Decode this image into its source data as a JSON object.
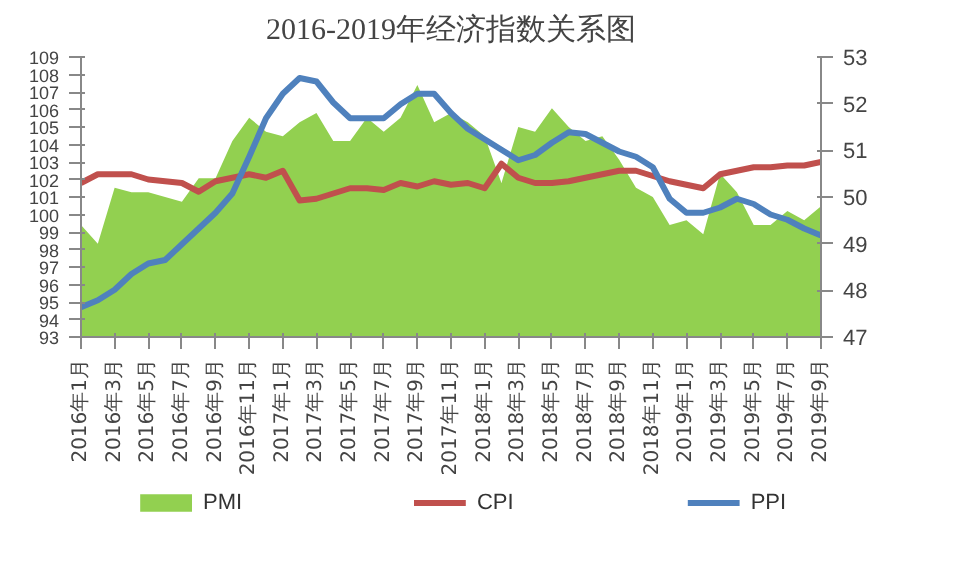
{
  "chart_data": {
    "type": "line",
    "title": "2016-2019年经济指数关系图",
    "categories": [
      "2016年1月",
      null,
      "2016年3月",
      null,
      "2016年5月",
      null,
      "2016年7月",
      null,
      "2016年9月",
      null,
      "2016年11月",
      null,
      "2017年1月",
      null,
      "2017年3月",
      null,
      "2017年5月",
      null,
      "2017年7月",
      null,
      "2017年9月",
      null,
      "2017年11月",
      null,
      "2018年1月",
      null,
      "2018年3月",
      null,
      "2018年5月",
      null,
      "2018年7月",
      null,
      "2018年9月",
      null,
      "2018年11月",
      null,
      "2019年1月",
      null,
      "2019年3月",
      null,
      "2019年5月",
      null,
      "2019年7月",
      null,
      "2019年9月"
    ],
    "ylim": [
      93,
      109
    ],
    "yticks": [
      93,
      94,
      95,
      96,
      97,
      98,
      99,
      100,
      101,
      102,
      103,
      104,
      105,
      106,
      107,
      108,
      109
    ],
    "y2lim": [
      47,
      53
    ],
    "y2ticks": [
      47,
      48,
      49,
      50,
      51,
      52,
      53
    ],
    "grid": false,
    "legend": "bottom",
    "series": [
      {
        "name": "PMI",
        "type": "area",
        "axis": "y2",
        "color": "#92d050",
        "values": [
          49.4,
          49.0,
          50.2,
          50.1,
          50.1,
          50.0,
          49.9,
          50.4,
          50.4,
          51.2,
          51.7,
          51.4,
          51.3,
          51.6,
          51.8,
          51.2,
          51.2,
          51.7,
          51.4,
          51.7,
          52.4,
          51.6,
          51.8,
          51.6,
          51.3,
          50.3,
          51.5,
          51.4,
          51.9,
          51.5,
          51.2,
          51.3,
          50.8,
          50.2,
          50.0,
          49.4,
          49.5,
          49.2,
          50.5,
          50.1,
          49.4,
          49.4,
          49.7,
          49.5,
          49.8
        ]
      },
      {
        "name": "CPI",
        "color": "#c0504d",
        "values": [
          101.8,
          102.3,
          102.3,
          102.3,
          102.0,
          101.9,
          101.8,
          101.3,
          101.9,
          102.1,
          102.3,
          102.1,
          102.5,
          100.8,
          100.9,
          101.2,
          101.5,
          101.5,
          101.4,
          101.8,
          101.6,
          101.9,
          101.7,
          101.8,
          101.5,
          102.9,
          102.1,
          101.8,
          101.8,
          101.9,
          102.1,
          102.3,
          102.5,
          102.5,
          102.2,
          101.9,
          101.7,
          101.5,
          102.3,
          102.5,
          102.7,
          102.7,
          102.8,
          102.8,
          103.0
        ]
      },
      {
        "name": "PPI",
        "color": "#4f81bd",
        "values": [
          94.7,
          95.1,
          95.7,
          96.6,
          97.2,
          97.4,
          98.3,
          99.2,
          100.1,
          101.2,
          103.3,
          105.5,
          106.9,
          107.8,
          107.6,
          106.4,
          105.5,
          105.5,
          105.5,
          106.3,
          106.9,
          106.9,
          105.8,
          104.9,
          104.3,
          103.7,
          103.1,
          103.4,
          104.1,
          104.7,
          104.6,
          104.1,
          103.6,
          103.3,
          102.7,
          100.9,
          100.1,
          100.1,
          100.4,
          100.9,
          100.6,
          100.0,
          99.7,
          99.2,
          98.8
        ]
      }
    ]
  }
}
